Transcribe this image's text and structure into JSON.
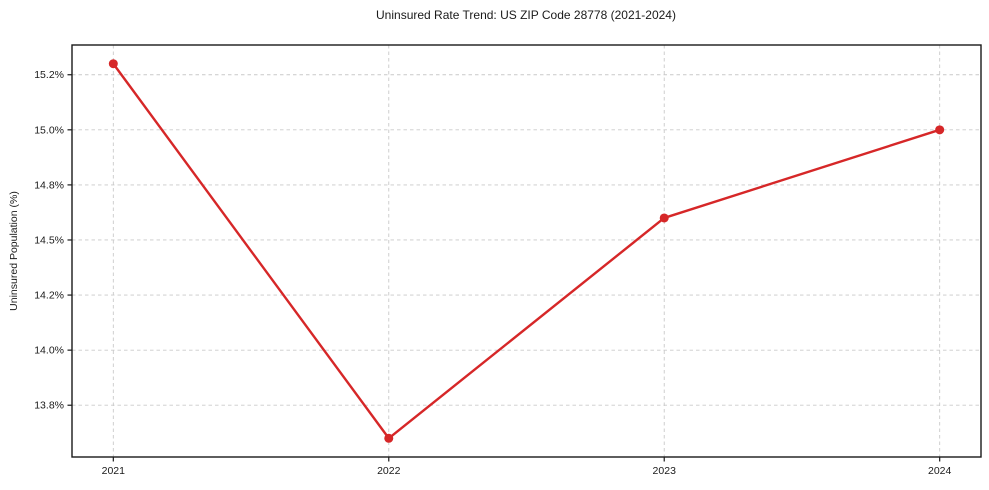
{
  "figure": {
    "background": "#ffffff"
  },
  "chart_data": {
    "type": "line",
    "title": "Uninsured Rate Trend: US ZIP Code 28778 (2021-2024)",
    "xlabel": "",
    "ylabel": "Uninsured Population (%)",
    "x": [
      2021,
      2022,
      2023,
      2024
    ],
    "series": [
      {
        "name": "Uninsured Rate",
        "values": [
          15.3,
          13.6,
          14.6,
          15.0
        ]
      }
    ],
    "xticks": [
      {
        "value": 2021,
        "label": "2021"
      },
      {
        "value": 2022,
        "label": "2022"
      },
      {
        "value": 2023,
        "label": "2023"
      },
      {
        "value": 2024,
        "label": "2024"
      }
    ],
    "yticks": [
      {
        "value": 13.75,
        "label": "13.8%"
      },
      {
        "value": 14.0,
        "label": "14.0%"
      },
      {
        "value": 14.25,
        "label": "14.2%"
      },
      {
        "value": 14.5,
        "label": "14.5%"
      },
      {
        "value": 14.75,
        "label": "14.8%"
      },
      {
        "value": 15.0,
        "label": "15.0%"
      },
      {
        "value": 15.25,
        "label": "15.2%"
      }
    ],
    "xlim": [
      2020.85,
      2024.15
    ],
    "ylim": [
      13.515,
      15.385
    ],
    "grid": true,
    "legend": "none",
    "colors": {
      "line": "#d62728",
      "marker": "#d62728",
      "grid": "#c9c9c9",
      "axis": "#1a1a1a",
      "text": "#1a1a1a",
      "background": "#ffffff"
    }
  }
}
